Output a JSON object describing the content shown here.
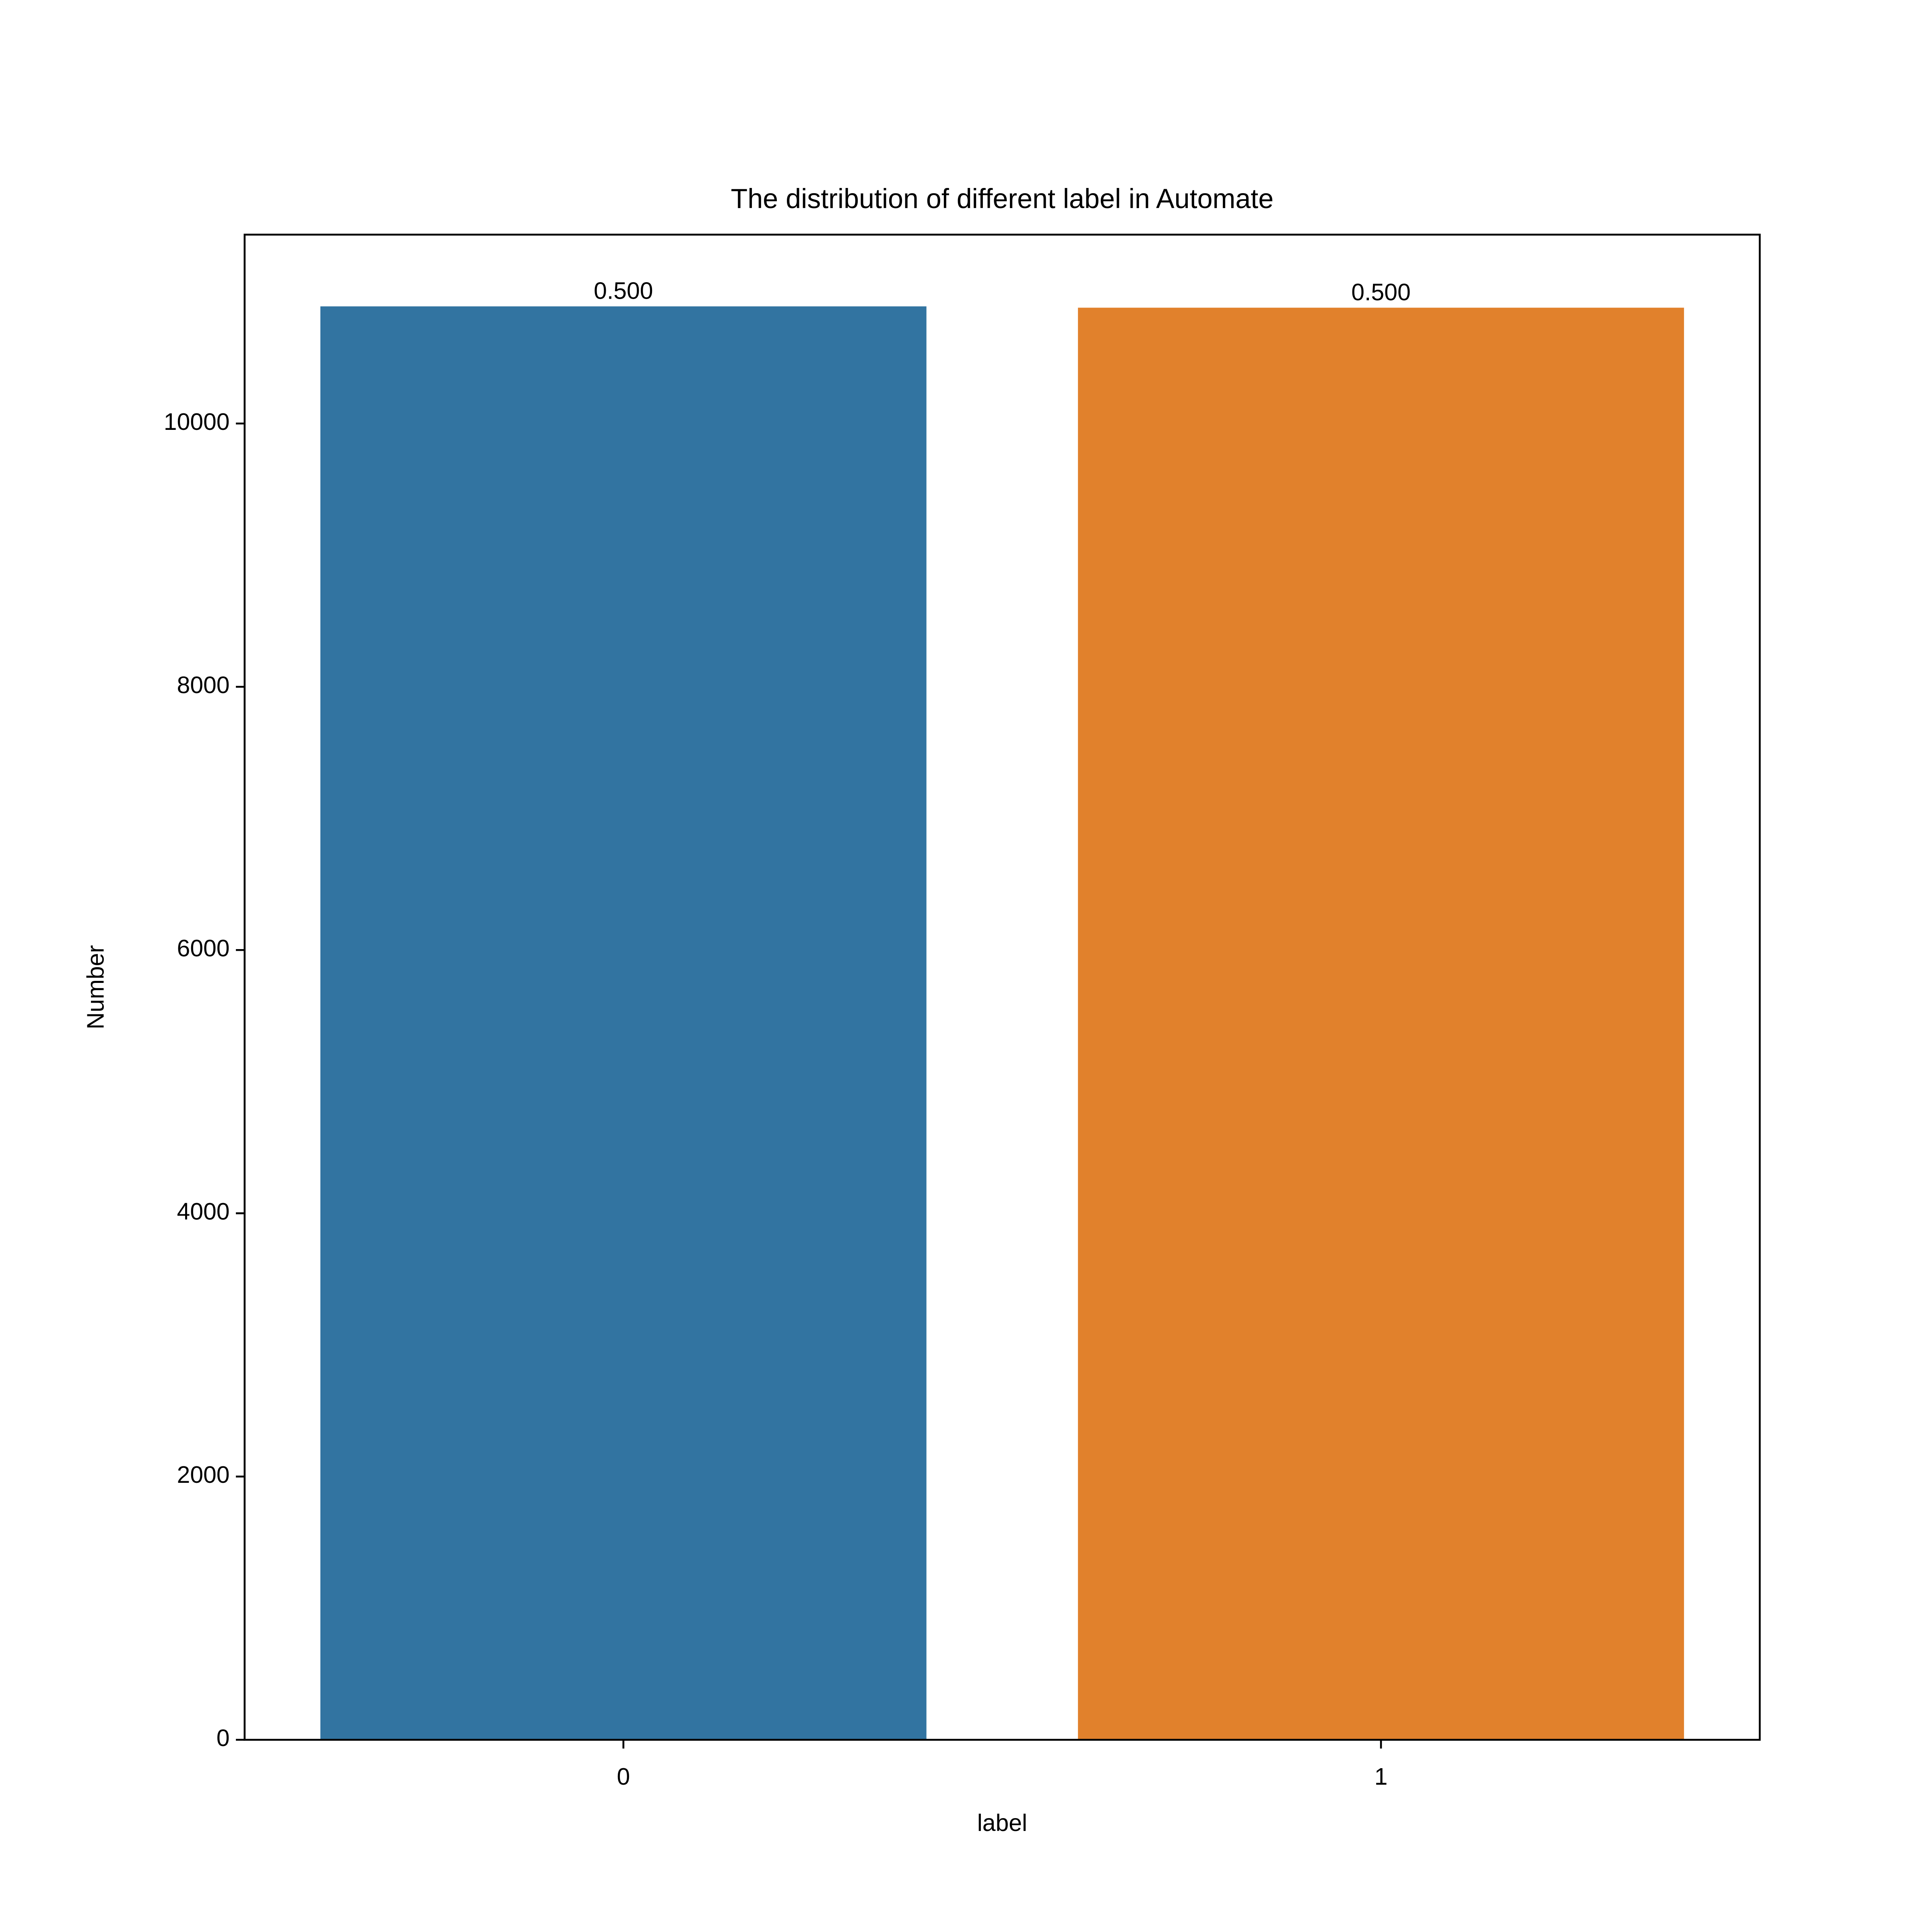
{
  "chart_data": {
    "type": "bar",
    "title": "The distribution of different label in Automate",
    "x_label": "label",
    "y_label": "Number",
    "categories": [
      "0",
      "1"
    ],
    "values": [
      10890,
      10880
    ],
    "colors": [
      "#3274a1",
      "#e1812c"
    ],
    "bar_labels": [
      "0.500",
      "0.500"
    ],
    "ylim": [
      0,
      11435
    ],
    "yticks": [
      0,
      2000,
      4000,
      6000,
      8000,
      10000
    ],
    "grid": false
  }
}
